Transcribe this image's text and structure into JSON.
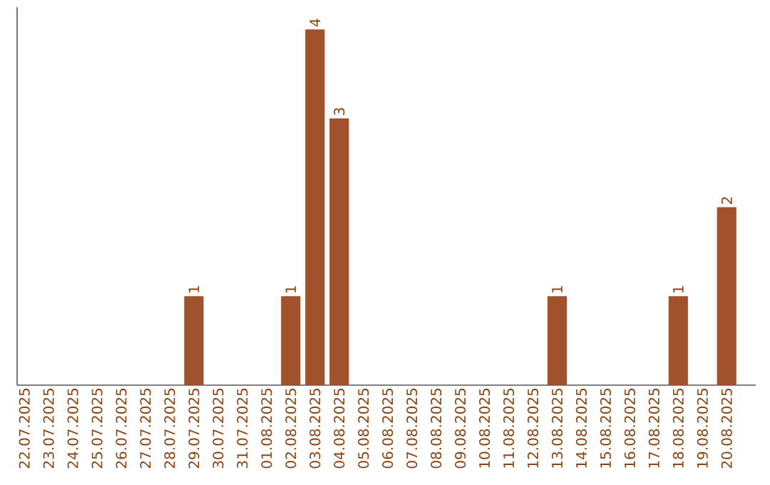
{
  "chart_data": {
    "type": "bar",
    "categories": [
      "22.07.2025",
      "23.07.2025",
      "24.07.2025",
      "25.07.2025",
      "26.07.2025",
      "27.07.2025",
      "28.07.2025",
      "29.07.2025",
      "30.07.2025",
      "31.07.2025",
      "01.08.2025",
      "02.08.2025",
      "03.08.2025",
      "04.08.2025",
      "05.08.2025",
      "06.08.2025",
      "07.08.2025",
      "08.08.2025",
      "09.08.2025",
      "10.08.2025",
      "11.08.2025",
      "12.08.2025",
      "13.08.2025",
      "14.08.2025",
      "15.08.2025",
      "16.08.2025",
      "17.08.2025",
      "18.08.2025",
      "19.08.2025",
      "20.08.2025"
    ],
    "values": [
      0,
      0,
      0,
      0,
      0,
      0,
      0,
      1,
      0,
      0,
      0,
      1,
      4,
      3,
      0,
      0,
      0,
      0,
      0,
      0,
      0,
      0,
      1,
      0,
      0,
      0,
      0,
      1,
      0,
      2
    ],
    "value_labels": [
      null,
      null,
      null,
      null,
      null,
      null,
      null,
      "1",
      null,
      null,
      null,
      "1",
      "4",
      "3",
      null,
      null,
      null,
      null,
      null,
      null,
      null,
      null,
      "1",
      null,
      null,
      null,
      null,
      "1",
      null,
      "2"
    ],
    "color": "#a0522d",
    "ylim": [
      0,
      4.25
    ],
    "tick_labels": "x"
  }
}
